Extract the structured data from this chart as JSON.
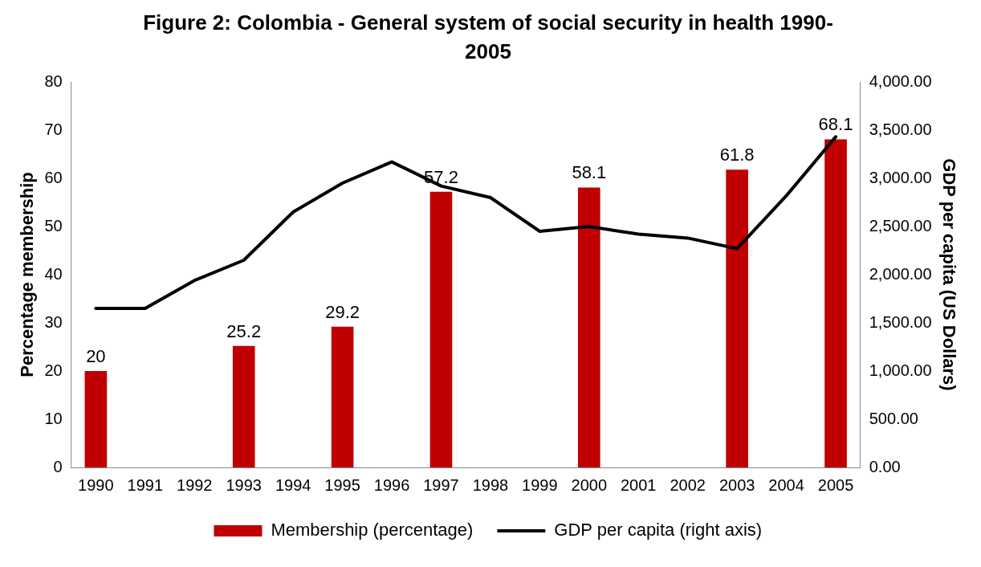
{
  "chart_data": {
    "type": "bar",
    "title": "Figure 2: Colombia - General system of social security in health 1990-2005",
    "ylabel": "Percentage membership",
    "y2label": "GDP per capita (US Dollars)",
    "categories": [
      "1990",
      "1991",
      "1992",
      "1993",
      "1994",
      "1995",
      "1996",
      "1997",
      "1998",
      "1999",
      "2000",
      "2001",
      "2002",
      "2003",
      "2004",
      "2005"
    ],
    "series": [
      {
        "name": "Membership (percentage)",
        "color": "#c00000",
        "values": [
          20,
          null,
          null,
          25.2,
          null,
          29.2,
          null,
          57.2,
          null,
          null,
          58.1,
          null,
          null,
          61.8,
          null,
          68.1
        ],
        "value_labels": [
          "20",
          null,
          null,
          "25.2",
          null,
          "29.2",
          null,
          "57.2",
          null,
          null,
          "58.1",
          null,
          null,
          "61.8",
          null,
          "68.1"
        ]
      },
      {
        "name": "GDP per capita (right axis)",
        "type": "line",
        "axis": "y2",
        "color": "#000000",
        "marker": "none",
        "values": [
          1650,
          1650,
          1940,
          2150,
          2650,
          2950,
          3170,
          2920,
          2800,
          2450,
          2500,
          2420,
          2380,
          2270,
          2820,
          3430
        ]
      }
    ],
    "ylim": [
      0,
      80
    ],
    "yticks": [
      0,
      10,
      20,
      30,
      40,
      50,
      60,
      70,
      80
    ],
    "y2lim": [
      0,
      4000
    ],
    "y2ticks": [
      {
        "value": 0,
        "label": "0.00"
      },
      {
        "value": 500,
        "label": "500.00"
      },
      {
        "value": 1000,
        "label": "1,000.00"
      },
      {
        "value": 1500,
        "label": "1,500.00"
      },
      {
        "value": 2000,
        "label": "2,000.00"
      },
      {
        "value": 2500,
        "label": "2,500.00"
      },
      {
        "value": 3000,
        "label": "3,000.00"
      },
      {
        "value": 3500,
        "label": "3,500.00"
      },
      {
        "value": 4000,
        "label": "4,000.00"
      }
    ],
    "grid": false,
    "legend": "bottom"
  }
}
